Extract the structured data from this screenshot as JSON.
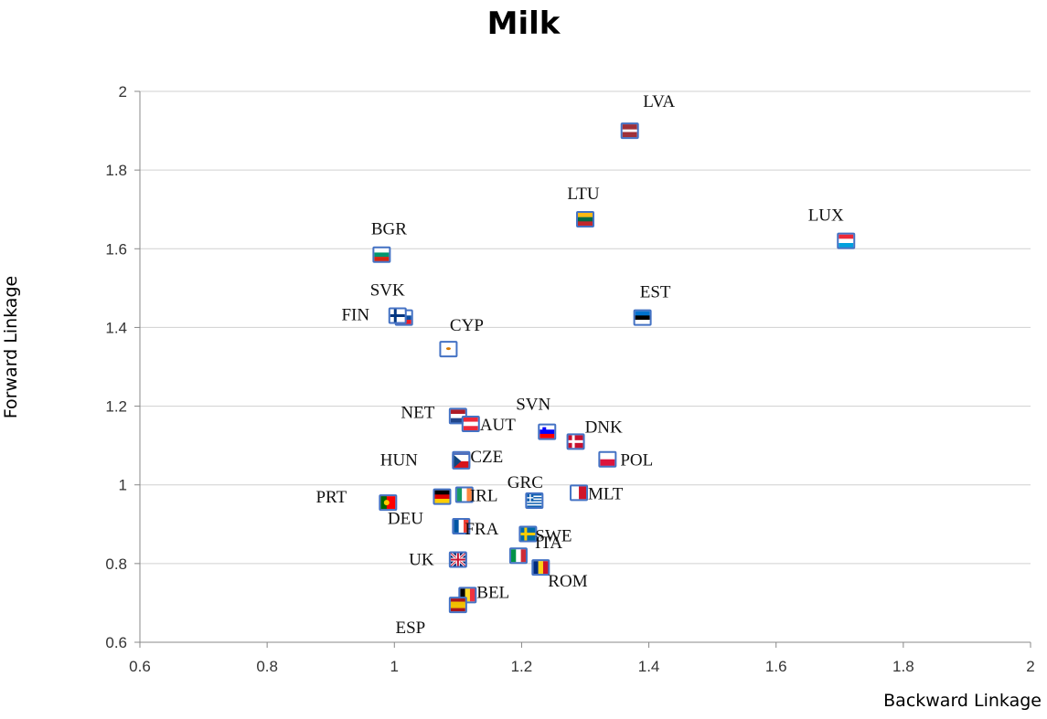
{
  "chart_data": {
    "type": "scatter",
    "title": "Milk",
    "xlabel": "Backward Linkage",
    "ylabel": "Forward Linkage",
    "xlim": [
      0.6,
      2
    ],
    "ylim": [
      0.6,
      2
    ],
    "xticks": [
      "0.6",
      "0.8",
      "1",
      "1.2",
      "1.4",
      "1.6",
      "1.8",
      "2"
    ],
    "yticks": [
      "0.6",
      "0.8",
      "1",
      "1.2",
      "1.4",
      "1.6",
      "1.8",
      "2"
    ],
    "grid": "horizontal",
    "points": [
      {
        "label": "LVA",
        "x": 1.37,
        "y": 1.9,
        "flag": "latvia"
      },
      {
        "label": "LTU",
        "x": 1.3,
        "y": 1.675,
        "flag": "lithuania"
      },
      {
        "label": "LUX",
        "x": 1.71,
        "y": 1.62,
        "flag": "luxembourg"
      },
      {
        "label": "BGR",
        "x": 0.98,
        "y": 1.585,
        "flag": "bulgaria"
      },
      {
        "label": "SVK",
        "x": 1.015,
        "y": 1.425,
        "flag": "slovakia"
      },
      {
        "label": "FIN",
        "x": 1.005,
        "y": 1.43,
        "flag": "finland"
      },
      {
        "label": "EST",
        "x": 1.39,
        "y": 1.425,
        "flag": "estonia"
      },
      {
        "label": "CYP",
        "x": 1.085,
        "y": 1.345,
        "flag": "cyprus"
      },
      {
        "label": "NET",
        "x": 1.1,
        "y": 1.175,
        "flag": "netherlands"
      },
      {
        "label": "AUT",
        "x": 1.12,
        "y": 1.155,
        "flag": "austria"
      },
      {
        "label": "SVN",
        "x": 1.24,
        "y": 1.135,
        "flag": "slovenia"
      },
      {
        "label": "DNK",
        "x": 1.285,
        "y": 1.11,
        "flag": "denmark"
      },
      {
        "label": "POL",
        "x": 1.335,
        "y": 1.065,
        "flag": "poland"
      },
      {
        "label": "HUN",
        "x": 1.105,
        "y": 1.065,
        "flag": "hungary"
      },
      {
        "label": "CZE",
        "x": 1.105,
        "y": 1.06,
        "flag": "czech"
      },
      {
        "label": "MLT",
        "x": 1.29,
        "y": 0.98,
        "flag": "malta"
      },
      {
        "label": "IRL",
        "x": 1.11,
        "y": 0.975,
        "flag": "ireland"
      },
      {
        "label": "DEU",
        "x": 1.075,
        "y": 0.97,
        "flag": "germany"
      },
      {
        "label": "GRC",
        "x": 1.22,
        "y": 0.96,
        "flag": "greece"
      },
      {
        "label": "PRT",
        "x": 0.99,
        "y": 0.955,
        "flag": "portugal"
      },
      {
        "label": "FRA",
        "x": 1.105,
        "y": 0.895,
        "flag": "france"
      },
      {
        "label": "SWE",
        "x": 1.21,
        "y": 0.875,
        "flag": "sweden"
      },
      {
        "label": "ITA",
        "x": 1.195,
        "y": 0.82,
        "flag": "italy"
      },
      {
        "label": "ROM",
        "x": 1.23,
        "y": 0.79,
        "flag": "romania"
      },
      {
        "label": "UK",
        "x": 1.1,
        "y": 0.81,
        "flag": "uk"
      },
      {
        "label": "BEL",
        "x": 1.115,
        "y": 0.72,
        "flag": "belgium"
      },
      {
        "label": "ESP",
        "x": 1.1,
        "y": 0.695,
        "flag": "spain"
      }
    ]
  }
}
